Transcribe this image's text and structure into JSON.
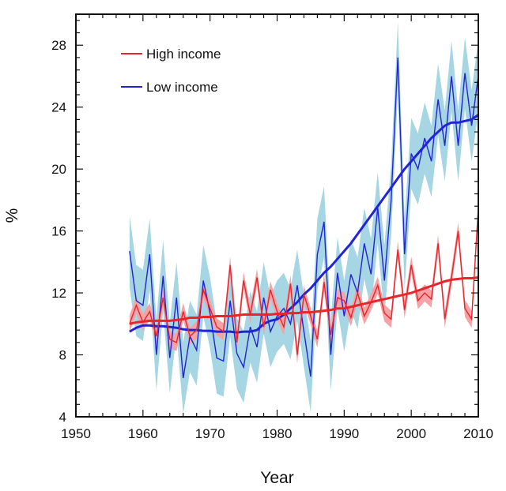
{
  "chart_data": {
    "type": "line",
    "title": "",
    "xlabel": "Year",
    "ylabel": "%",
    "xlim": [
      1950,
      2010
    ],
    "ylim": [
      4,
      30
    ],
    "x_ticks": [
      1950,
      1960,
      1970,
      1980,
      1990,
      2000,
      2010
    ],
    "y_ticks": [
      4,
      8,
      12,
      16,
      20,
      24,
      28
    ],
    "legend": {
      "position": "top-left",
      "entries": [
        "High income",
        "Low income"
      ]
    },
    "grid": false,
    "colors": {
      "high_line": "#e8252b",
      "high_band": "#f4a3a6",
      "low_line": "#2323d6",
      "low_band": "#a6d6e4"
    },
    "years": [
      1958,
      1959,
      1960,
      1961,
      1962,
      1963,
      1964,
      1965,
      1966,
      1967,
      1968,
      1969,
      1970,
      1971,
      1972,
      1973,
      1974,
      1975,
      1976,
      1977,
      1978,
      1979,
      1980,
      1981,
      1982,
      1983,
      1984,
      1985,
      1986,
      1987,
      1988,
      1989,
      1990,
      1991,
      1992,
      1993,
      1994,
      1995,
      1996,
      1997,
      1998,
      1999,
      2000,
      2001,
      2002,
      2003,
      2004,
      2005,
      2006,
      2007,
      2008,
      2009,
      2010
    ],
    "series": [
      {
        "name": "High income",
        "annual": [
          10.0,
          11.2,
          10.1,
          10.8,
          9.2,
          11.7,
          9.0,
          8.8,
          10.8,
          9.2,
          9.6,
          12.2,
          11.0,
          9.8,
          9.5,
          13.8,
          8.8,
          12.8,
          10.6,
          13.0,
          9.8,
          12.2,
          10.8,
          9.8,
          12.6,
          8.0,
          11.9,
          10.5,
          9.0,
          12.7,
          9.3,
          11.7,
          11.5,
          10.4,
          12.0,
          10.5,
          11.4,
          12.5,
          10.7,
          10.3,
          14.8,
          10.9,
          13.8,
          11.5,
          12.0,
          11.6,
          15.2,
          10.3,
          13.0,
          16.0,
          11.0,
          10.3,
          17.5
        ],
        "trend": [
          10.0,
          10.1,
          10.15,
          10.2,
          10.2,
          10.2,
          10.2,
          10.25,
          10.3,
          10.4,
          10.4,
          10.45,
          10.45,
          10.5,
          10.5,
          10.5,
          10.55,
          10.6,
          10.6,
          10.6,
          10.6,
          10.6,
          10.65,
          10.65,
          10.7,
          10.7,
          10.75,
          10.75,
          10.8,
          10.85,
          10.9,
          11.0,
          11.0,
          11.1,
          11.2,
          11.3,
          11.4,
          11.5,
          11.6,
          11.7,
          11.8,
          11.9,
          12.0,
          12.15,
          12.3,
          12.45,
          12.6,
          12.75,
          12.85,
          12.9,
          12.95,
          12.95,
          13.0
        ],
        "band_halfwidth": 0.55
      },
      {
        "name": "Low income",
        "annual": [
          14.7,
          11.5,
          11.2,
          14.5,
          8.0,
          13.1,
          7.8,
          11.7,
          6.5,
          9.2,
          8.3,
          12.8,
          10.7,
          7.8,
          7.6,
          11.5,
          8.1,
          7.2,
          9.8,
          8.5,
          11.7,
          9.5,
          10.5,
          11.0,
          10.0,
          12.5,
          9.5,
          6.6,
          14.5,
          16.6,
          8.0,
          13.3,
          10.5,
          13.2,
          12.0,
          15.2,
          13.2,
          17.5,
          12.8,
          18.0,
          27.2,
          14.5,
          21.0,
          20.0,
          22.0,
          20.5,
          24.5,
          21.5,
          26.0,
          21.5,
          26.2,
          22.8,
          26.0
        ],
        "trend": [
          9.5,
          9.75,
          9.9,
          9.9,
          9.85,
          9.85,
          9.8,
          9.75,
          9.65,
          9.6,
          9.6,
          9.55,
          9.55,
          9.5,
          9.5,
          9.5,
          9.45,
          9.5,
          9.5,
          9.6,
          10.0,
          10.2,
          10.3,
          10.6,
          11.0,
          11.4,
          11.9,
          12.3,
          12.8,
          13.3,
          13.7,
          14.2,
          14.7,
          15.2,
          15.8,
          16.4,
          17.0,
          17.6,
          18.2,
          18.8,
          19.4,
          20.0,
          20.5,
          21.0,
          21.5,
          22.0,
          22.4,
          22.8,
          23.0,
          23.0,
          23.1,
          23.2,
          23.5
        ],
        "band_halfwidth": 2.3
      }
    ]
  }
}
